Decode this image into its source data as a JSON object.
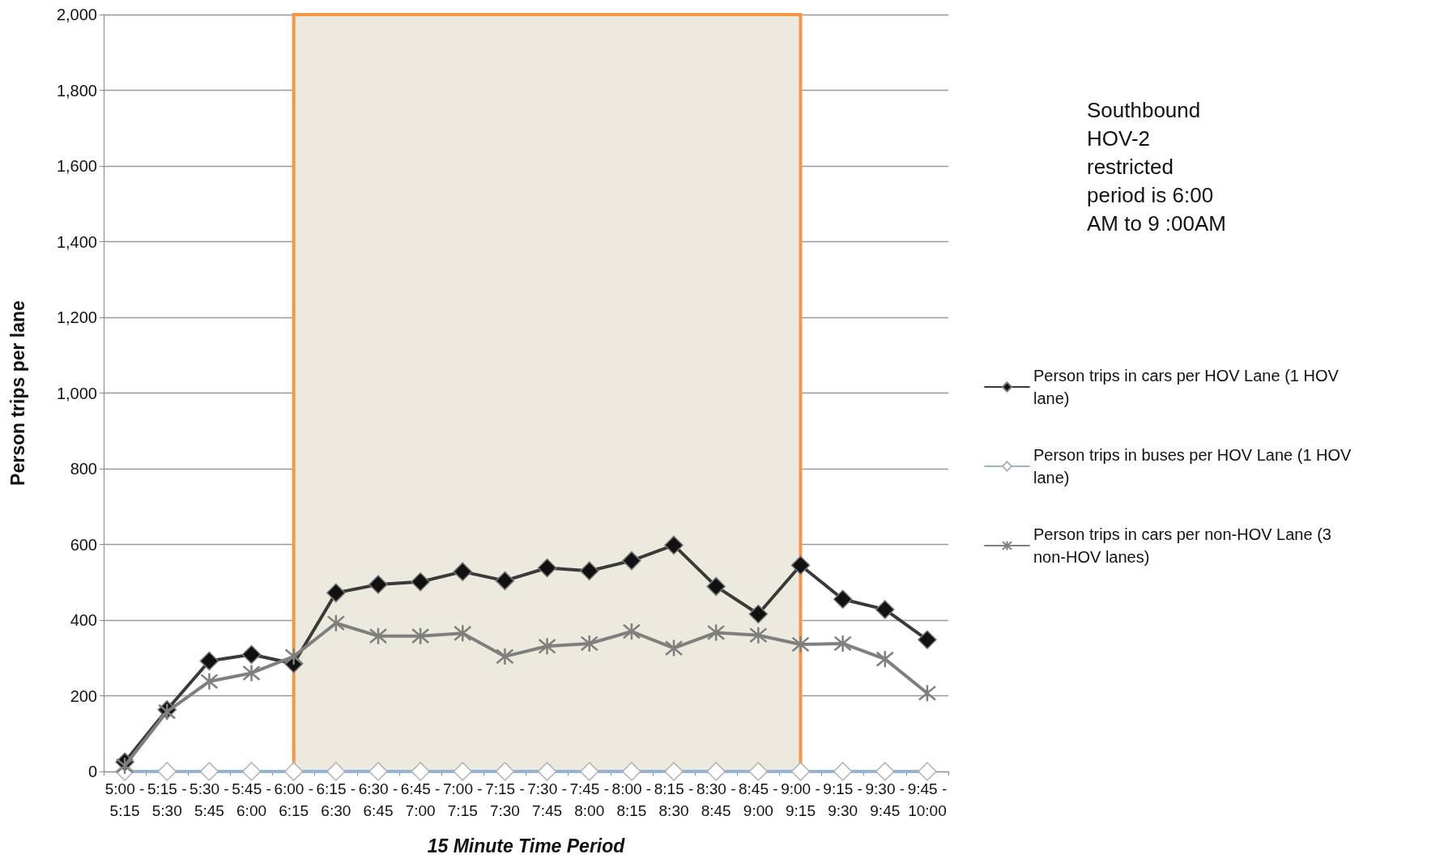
{
  "chart_data": {
    "type": "line",
    "xlabel": "15 Minute Time Period",
    "ylabel": "Person trips per lane",
    "categories": [
      "5:00 - 5:15",
      "5:15 - 5:30",
      "5:30 - 5:45",
      "5:45 - 6:00",
      "6:00 - 6:15",
      "6:15 - 6:30",
      "6:30 - 6:45",
      "6:45 - 7:00",
      "7:00 - 7:15",
      "7:15 - 7:30",
      "7:30 - 7:45",
      "7:45 - 8:00",
      "8:00 - 8:15",
      "8:15 - 8:30",
      "8:30 - 8:45",
      "8:45 - 9:00",
      "9:00 - 9:15",
      "9:15 - 9:30",
      "9:30 - 9:45",
      "9:45 - 10:00"
    ],
    "series": [
      {
        "name": "Person trips in cars per HOV Lane (1 HOV lane)",
        "color": "#3a3a3a",
        "marker": "diamond",
        "values": [
          25,
          163,
          292,
          309,
          285,
          472,
          494,
          501,
          528,
          504,
          538,
          530,
          557,
          598,
          489,
          416,
          545,
          455,
          428,
          348
        ]
      },
      {
        "name": "Person trips in buses per HOV Lane (1 HOV lane)",
        "color": "#95b3d7",
        "marker": "diamond",
        "values": [
          0,
          0,
          0,
          0,
          0,
          0,
          0,
          0,
          0,
          0,
          0,
          0,
          0,
          0,
          0,
          0,
          0,
          0,
          0,
          0
        ]
      },
      {
        "name": "Person trips in cars per non-HOV Lane (3 non-HOV lanes)",
        "color": "#7f7f7f",
        "marker": "cross",
        "values": [
          15,
          158,
          238,
          260,
          304,
          392,
          358,
          358,
          365,
          304,
          331,
          338,
          370,
          326,
          367,
          360,
          336,
          338,
          297,
          207
        ]
      }
    ],
    "bands": [
      {
        "axis": "x",
        "from": "6:00 - 6:15",
        "to": "9:00 - 9:15",
        "color": "#ece9de"
      }
    ],
    "annotations": [
      "Southbound HOV-2 restricted period is 6:00 AM to 9 :00AM"
    ],
    "ylim": [
      0,
      2000
    ],
    "yticks": [
      0,
      200,
      400,
      600,
      800,
      {
        "value": 1000,
        "label": "1,000"
      },
      {
        "value": 1200,
        "label": "1,200"
      },
      {
        "value": 1400,
        "label": "1,400"
      },
      {
        "value": 1600,
        "label": "1,600"
      },
      {
        "value": 1800,
        "label": "1,800"
      },
      {
        "value": 2000,
        "label": "2,000"
      }
    ],
    "grid": "y",
    "legend": "right"
  }
}
